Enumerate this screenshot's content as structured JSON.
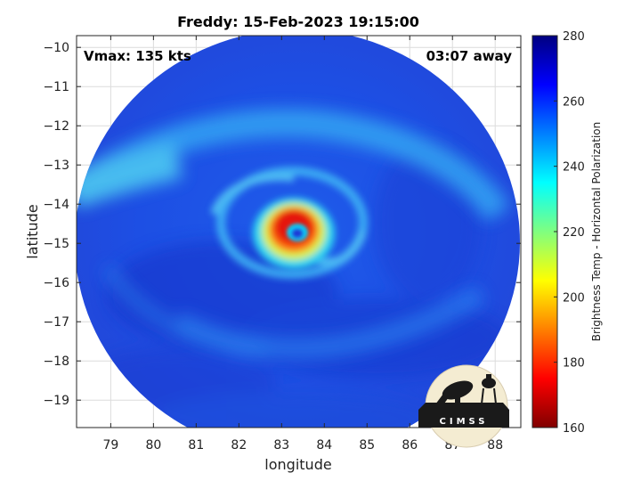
{
  "title": "Freddy: 15-Feb-2023 19:15:00",
  "vmax_label": "Vmax: 135 kts",
  "time_away_label": "03:07 away",
  "chart_data": {
    "type": "heatmap",
    "xlabel": "longitude",
    "ylabel": "latitude",
    "xlim": [
      78.2,
      88.6
    ],
    "ylim": [
      -19.7,
      -9.7
    ],
    "xticks": [
      79,
      80,
      81,
      82,
      83,
      84,
      85,
      86,
      87,
      88
    ],
    "yticks": [
      -10,
      -11,
      -12,
      -13,
      -14,
      -15,
      -16,
      -17,
      -18,
      -19
    ],
    "grid": true,
    "swath_center": [
      83.5,
      -14.7
    ],
    "eye_center": [
      83.3,
      -14.8
    ],
    "colorbar": {
      "label": "Brightness Temp - Horizontal Polarization",
      "range": [
        160,
        280
      ],
      "ticks": [
        160,
        180,
        200,
        220,
        240,
        260,
        280
      ],
      "colormap": "jet"
    }
  },
  "logo": {
    "text": "CIMSS"
  }
}
